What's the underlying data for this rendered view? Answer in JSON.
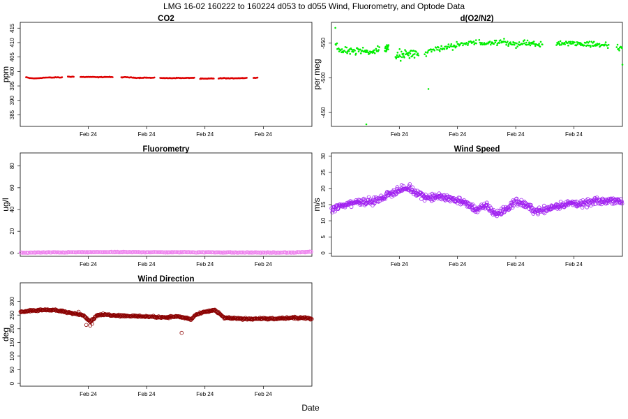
{
  "figure": {
    "title": "LMG   16-02    160222 to 160224    d053 to d055   Wind, Fluorometry, and Optode Data",
    "xlabel": "Date"
  },
  "chart_data": [
    {
      "id": "co2",
      "type": "scatter",
      "title": "CO2",
      "ylabel": "ppm",
      "ylim": [
        381,
        417
      ],
      "yticks": [
        385,
        390,
        395,
        400,
        405,
        410,
        415
      ],
      "y_reversed": true,
      "x_tick_labels": [
        "Feb 24",
        "Feb 24",
        "Feb 24",
        "Feb 24"
      ],
      "color": "#dd0000",
      "marker": "dot",
      "series": [
        {
          "x": [
            0.03,
            0.05,
            0.08,
            0.11,
            0.13,
            0.15,
            0.17,
            0.19,
            0.205,
            0.215
          ],
          "y": [
            398.0,
            397.7,
            397.6,
            397.8,
            397.9,
            397.9,
            397.9,
            398.0,
            397.9,
            398.0
          ]
        },
        {
          "x": [
            0.245,
            0.275
          ],
          "y": [
            398.2,
            398.2
          ]
        },
        {
          "x": [
            0.31,
            0.34,
            0.37,
            0.4,
            0.43,
            0.46,
            0.475
          ],
          "y": [
            398.1,
            398.1,
            398.1,
            398.0,
            398.1,
            398.1,
            398.0
          ]
        },
        {
          "x": [
            0.52,
            0.55,
            0.58,
            0.61,
            0.64,
            0.67,
            0.69
          ],
          "y": [
            398.0,
            398.0,
            397.9,
            397.8,
            397.9,
            397.8,
            397.8
          ]
        },
        {
          "x": [
            0.72,
            0.75,
            0.78,
            0.81,
            0.84,
            0.87,
            0.895
          ],
          "y": [
            397.8,
            397.7,
            397.7,
            397.8,
            397.7,
            397.8,
            397.8
          ]
        },
        {
          "x": [
            0.925,
            0.96,
            0.985,
            0.995
          ],
          "y": [
            397.5,
            397.5,
            397.6,
            397.6
          ]
        },
        {
          "x": [
            1.02,
            1.05,
            1.08,
            1.11,
            1.14,
            1.165
          ],
          "y": [
            397.6,
            397.7,
            397.6,
            397.7,
            397.7,
            397.8
          ]
        },
        {
          "x": [
            1.2,
            1.22
          ],
          "y": [
            397.8,
            397.8
          ]
        }
      ]
    },
    {
      "id": "o2n2",
      "type": "scatter",
      "title": "d(O2/N2)",
      "ylabel": "per meg",
      "ylim": [
        -430,
        -580
      ],
      "yticks": [
        -450,
        -500,
        -550
      ],
      "y_reversed": true,
      "x_tick_labels": [
        "Feb 24",
        "Feb 24",
        "Feb 24",
        "Feb 24"
      ],
      "color": "#00ee00",
      "marker": "dot",
      "series": [
        {
          "x": [
            0.02,
            0.05,
            0.08,
            0.11,
            0.14,
            0.17,
            0.2,
            0.23,
            0.25
          ],
          "y": [
            -545,
            -538,
            -540,
            -537,
            -541,
            -539,
            -536,
            -540,
            -542
          ],
          "spread": 7,
          "count": 70
        },
        {
          "x": [
            0.275,
            0.295
          ],
          "y": [
            -540,
            -545
          ],
          "spread": 8,
          "count": 16
        },
        {
          "x": [
            0.33,
            0.36,
            0.39,
            0.42,
            0.45
          ],
          "y": [
            -533,
            -531,
            -536,
            -532,
            -538
          ],
          "spread": 12,
          "count": 45
        },
        {
          "x": [
            0.48,
            0.51,
            0.54,
            0.57,
            0.6,
            0.63,
            0.66,
            0.69,
            0.72,
            0.75
          ],
          "y": [
            -536,
            -539,
            -541,
            -543,
            -545,
            -546,
            -548,
            -549,
            -550,
            -549
          ],
          "spread": 7,
          "count": 70
        },
        {
          "x": [
            0.76,
            0.79,
            0.82,
            0.85,
            0.88,
            0.91,
            0.94,
            0.97,
            1.0,
            1.03,
            1.06,
            1.09
          ],
          "y": [
            -552,
            -550,
            -549,
            -551,
            -553,
            -550,
            -548,
            -549,
            -551,
            -550,
            -547,
            -549
          ],
          "spread": 7,
          "count": 90
        },
        {
          "x": [
            1.16,
            1.18,
            1.22,
            1.25,
            1.28,
            1.31,
            1.34,
            1.37,
            1.4,
            1.43
          ],
          "y": [
            -549,
            -552,
            -548,
            -551,
            -549,
            -550,
            -547,
            -549,
            -548,
            -546
          ],
          "spread": 6,
          "count": 80
        },
        {
          "x": [
            1.47,
            1.5
          ],
          "y": [
            -540,
            -546
          ],
          "spread": 10,
          "count": 10
        }
      ],
      "outliers": {
        "x": [
          0.18,
          0.02,
          0.5,
          1.5
        ],
        "y": [
          -433,
          -572,
          -484,
          -519
        ]
      }
    },
    {
      "id": "fluorometry",
      "type": "scatter",
      "title": "Fluorometry",
      "ylabel": "ug/l",
      "ylim": [
        -3,
        92
      ],
      "yticks": [
        0,
        20,
        40,
        60,
        80
      ],
      "y_reversed": false,
      "x_tick_labels": [
        "Feb 24",
        "Feb 24",
        "Feb 24",
        "Feb 24"
      ],
      "color": "#ee82ee",
      "marker": "circle",
      "series": [
        {
          "x": [
            0.0,
            0.1,
            0.2,
            0.3,
            0.4,
            0.5,
            0.6,
            0.7,
            0.8,
            0.9,
            1.0,
            1.1,
            1.2,
            1.3,
            1.4,
            1.5
          ],
          "y": [
            0.3,
            0.5,
            0.6,
            0.7,
            0.8,
            0.8,
            0.8,
            0.7,
            0.7,
            0.7,
            0.6,
            0.5,
            0.5,
            0.4,
            0.4,
            1.2
          ],
          "spread": 0.4,
          "count": 320
        }
      ]
    },
    {
      "id": "windspeed",
      "type": "scatter",
      "title": "Wind Speed",
      "ylabel": "m/s",
      "ylim": [
        -1,
        31
      ],
      "yticks": [
        0,
        5,
        10,
        15,
        20,
        25,
        30
      ],
      "y_reversed": false,
      "x_tick_labels": [
        "Feb 24",
        "Feb 24",
        "Feb 24",
        "Feb 24"
      ],
      "color": "#a020f0",
      "marker": "circle",
      "series": [
        {
          "x": [
            0.0,
            0.05,
            0.1,
            0.15,
            0.2,
            0.25,
            0.3,
            0.35,
            0.4,
            0.45,
            0.5,
            0.55,
            0.6,
            0.65,
            0.7,
            0.75,
            0.8,
            0.85,
            0.9,
            0.95,
            1.0,
            1.05,
            1.1,
            1.15,
            1.2,
            1.25,
            1.3,
            1.35,
            1.4,
            1.45,
            1.5
          ],
          "y": [
            13.5,
            14.5,
            15.5,
            16.0,
            16.0,
            16.5,
            18.5,
            19.5,
            20.0,
            18.5,
            17.0,
            17.5,
            17.0,
            16.5,
            15.0,
            13.5,
            14.5,
            12.0,
            13.5,
            16.0,
            15.0,
            13.0,
            13.5,
            14.5,
            15.0,
            15.5,
            15.0,
            16.0,
            16.0,
            16.5,
            16.0
          ],
          "spread": 1.6,
          "count": 620
        }
      ]
    },
    {
      "id": "winddir",
      "type": "scatter",
      "title": "Wind Direction",
      "ylabel": "deg",
      "ylim": [
        -10,
        368
      ],
      "yticks": [
        0,
        50,
        100,
        150,
        200,
        250,
        300
      ],
      "y_reversed": false,
      "x_tick_labels": [
        "Feb 24",
        "Feb 24",
        "Feb 24",
        "Feb 24"
      ],
      "color": "#8b0000",
      "marker": "circle",
      "series": [
        {
          "x": [
            0.0,
            0.05,
            0.1,
            0.15,
            0.2,
            0.25,
            0.3,
            0.33,
            0.36,
            0.4,
            0.45,
            0.5,
            0.55,
            0.6,
            0.65,
            0.7,
            0.75,
            0.8,
            0.85,
            0.88,
            0.9,
            0.95,
            1.0,
            1.05,
            1.1,
            1.15,
            1.2,
            1.25,
            1.3,
            1.35,
            1.4,
            1.45,
            1.5
          ],
          "y": [
            262,
            265,
            268,
            270,
            266,
            258,
            254,
            248,
            226,
            252,
            251,
            249,
            247,
            246,
            245,
            243,
            242,
            245,
            240,
            234,
            250,
            262,
            268,
            240,
            238,
            236,
            237,
            237,
            236,
            238,
            240,
            239,
            238
          ],
          "spread": 5,
          "count": 560
        }
      ],
      "outliers": {
        "x": [
          0.3,
          0.34,
          0.36,
          0.37,
          0.22,
          0.83
        ],
        "y": [
          262,
          214,
          212,
          218,
          263,
          185
        ]
      }
    }
  ]
}
